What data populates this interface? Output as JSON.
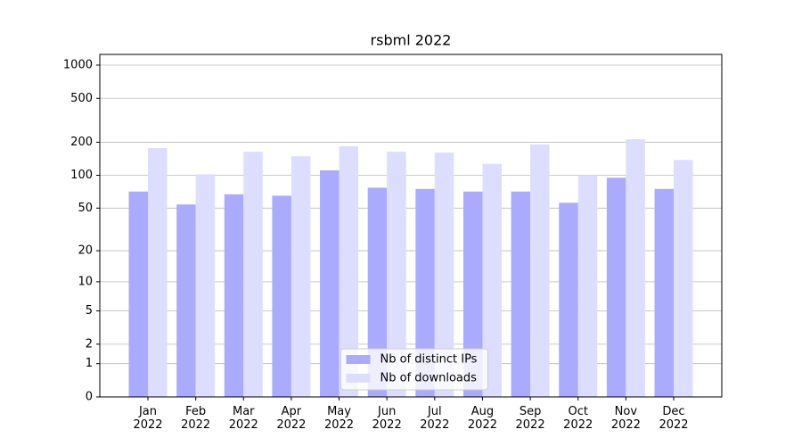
{
  "chart_data": {
    "type": "bar",
    "title": "rsbml 2022",
    "categories": [
      "Jan 2022",
      "Feb 2022",
      "Mar 2022",
      "Apr 2022",
      "May 2022",
      "Jun 2022",
      "Jul 2022",
      "Aug 2022",
      "Sep 2022",
      "Oct 2022",
      "Nov 2022",
      "Dec 2022"
    ],
    "series": [
      {
        "name": "Nb of distinct IPs",
        "color": "#aaaaff",
        "values": [
          71,
          54,
          67,
          65,
          111,
          77,
          75,
          71,
          71,
          56,
          95,
          75
        ]
      },
      {
        "name": "Nb of downloads",
        "color": "#ddddff",
        "values": [
          177,
          102,
          164,
          149,
          184,
          164,
          161,
          127,
          191,
          100,
          213,
          138
        ]
      }
    ],
    "yscale": "log1p",
    "ylim": [
      0,
      1250
    ],
    "yticks": [
      0,
      1,
      2,
      5,
      10,
      20,
      50,
      100,
      200,
      500,
      1000
    ],
    "grid": true,
    "legend": "lower center"
  }
}
